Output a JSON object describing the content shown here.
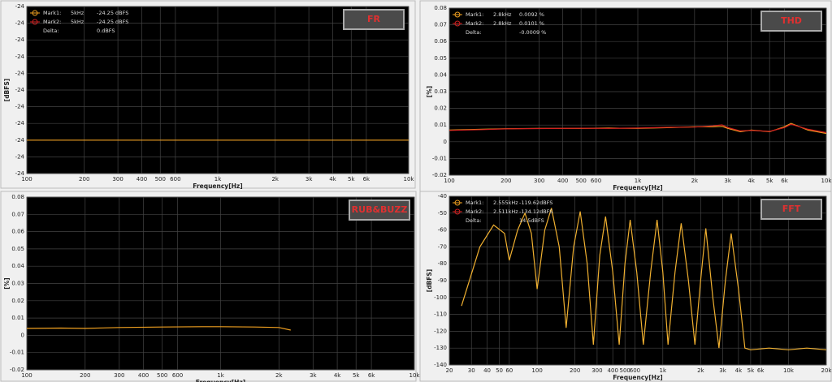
{
  "chart_data": [
    {
      "type": "line",
      "title": "FR",
      "ylabel": "[dBFS]",
      "xlabel": "Frequency[Hz]",
      "xscale": "log",
      "grid": true,
      "xlim": [
        100,
        10000
      ],
      "ylim": [
        -24.27,
        -24.17
      ],
      "xticks": [
        100,
        200,
        300,
        400,
        500,
        600,
        {
          "value": 1000,
          "label": "1k"
        },
        {
          "value": 2000,
          "label": "2k"
        },
        {
          "value": 3000,
          "label": "3k"
        },
        {
          "value": 4000,
          "label": "4k"
        },
        {
          "value": 5000,
          "label": "5k"
        },
        {
          "value": 6000,
          "label": "6k"
        },
        {
          "value": 10000,
          "label": "10k"
        }
      ],
      "yticks": [
        {
          "value": -24.17,
          "label": "-24"
        },
        {
          "value": -24.18,
          "label": "-24"
        },
        {
          "value": -24.19,
          "label": "-24"
        },
        {
          "value": -24.2,
          "label": "-24"
        },
        {
          "value": -24.21,
          "label": "-24"
        },
        {
          "value": -24.22,
          "label": "-24"
        },
        {
          "value": -24.23,
          "label": "-24"
        },
        {
          "value": -24.24,
          "label": "-24"
        },
        {
          "value": -24.25,
          "label": "-24"
        },
        {
          "value": -24.26,
          "label": "-24"
        },
        {
          "value": -24.27,
          "label": "-24"
        }
      ],
      "legend": [
        {
          "name": "Mark1:",
          "freq": "5kHz",
          "level": "-24.25 dBFS"
        },
        {
          "name": "Mark2:",
          "freq": "5kHz",
          "level": "-24.25 dBFS"
        },
        {
          "name": "Delta:",
          "level": "0.dBFS"
        }
      ],
      "series": [
        {
          "color": "#f0a020",
          "x": [
            100,
            1000,
            5000,
            10000
          ],
          "values": [
            -24.25,
            -24.25,
            -24.25,
            -24.25
          ]
        }
      ]
    },
    {
      "type": "line",
      "title": "THD",
      "ylabel": "[%]",
      "xlabel": "Frequency[Hz]",
      "xscale": "log",
      "grid": true,
      "xlim": [
        100,
        10000
      ],
      "ylim": [
        -0.02,
        0.08
      ],
      "xticks": [
        100,
        200,
        300,
        400,
        500,
        600,
        {
          "value": 1000,
          "label": "1k"
        },
        {
          "value": 2000,
          "label": "2k"
        },
        {
          "value": 3000,
          "label": "3k"
        },
        {
          "value": 4000,
          "label": "4k"
        },
        {
          "value": 5000,
          "label": "5k"
        },
        {
          "value": 6000,
          "label": "6k"
        },
        {
          "value": 10000,
          "label": "10k"
        }
      ],
      "yticks": [
        0.08,
        0.07,
        0.06,
        0.05,
        0.04,
        0.03,
        0.02,
        0.01,
        0,
        -0.01,
        -0.02
      ],
      "legend": [
        {
          "name": "Mark1:",
          "freq": "2.8kHz",
          "level": "0.0092 %"
        },
        {
          "name": "Mark2:",
          "freq": "2.8kHz",
          "level": "0.0101 %"
        },
        {
          "name": "Delta:",
          "level": "-0.0009 %"
        }
      ],
      "series": [
        {
          "color": "#f0a020",
          "x": [
            100,
            150,
            200,
            300,
            500,
            700,
            1000,
            1500,
            2000,
            2500,
            2800,
            3000,
            3500,
            4000,
            5000,
            6000,
            6500,
            8000,
            10000
          ],
          "values": [
            0.007,
            0.0075,
            0.0078,
            0.008,
            0.008,
            0.0082,
            0.008,
            0.0085,
            0.009,
            0.009,
            0.0092,
            0.008,
            0.006,
            0.007,
            0.006,
            0.009,
            0.011,
            0.007,
            0.005
          ]
        },
        {
          "color": "#d02020",
          "x": [
            100,
            150,
            200,
            300,
            500,
            700,
            1000,
            1500,
            2000,
            2500,
            2800,
            3000,
            3500,
            4000,
            5000,
            6000,
            6500,
            8000,
            10000
          ],
          "values": [
            0.0068,
            0.0073,
            0.0077,
            0.0079,
            0.0081,
            0.008,
            0.0082,
            0.0087,
            0.0088,
            0.0095,
            0.0101,
            0.0085,
            0.0065,
            0.0068,
            0.0062,
            0.0085,
            0.0105,
            0.0075,
            0.0055
          ]
        }
      ]
    },
    {
      "type": "line",
      "title": "RUB&BUZZ",
      "ylabel": "[%]",
      "xlabel": "Frequency[Hz]",
      "xscale": "log",
      "grid": true,
      "xlim": [
        100,
        10000
      ],
      "ylim": [
        -0.02,
        0.08
      ],
      "xticks": [
        100,
        200,
        300,
        400,
        500,
        600,
        {
          "value": 1000,
          "label": "1k"
        },
        {
          "value": 2000,
          "label": "2k"
        },
        {
          "value": 3000,
          "label": "3k"
        },
        {
          "value": 4000,
          "label": "4k"
        },
        {
          "value": 5000,
          "label": "5k"
        },
        {
          "value": 6000,
          "label": "6k"
        },
        {
          "value": 10000,
          "label": "10k"
        }
      ],
      "yticks": [
        0.08,
        0.07,
        0.06,
        0.05,
        0.04,
        0.03,
        0.02,
        0.01,
        0,
        -0.01,
        -0.02
      ],
      "series": [
        {
          "color": "#f0a020",
          "x": [
            100,
            150,
            200,
            300,
            500,
            800,
            1000,
            1500,
            2000,
            2300
          ],
          "values": [
            0.004,
            0.0042,
            0.004,
            0.0045,
            0.0048,
            0.005,
            0.005,
            0.0048,
            0.0045,
            0.003
          ]
        }
      ]
    },
    {
      "type": "line",
      "title": "FFT",
      "ylabel": "[dBFS]",
      "xlabel": "Frequency[Hz]",
      "xscale": "log",
      "grid": true,
      "xlim": [
        20,
        20000
      ],
      "ylim": [
        -140,
        -40
      ],
      "xticks": [
        20,
        30,
        40,
        50,
        60,
        100,
        200,
        300,
        400,
        500,
        600,
        {
          "value": 1000,
          "label": "1k"
        },
        {
          "value": 2000,
          "label": "2k"
        },
        {
          "value": 3000,
          "label": "3k"
        },
        {
          "value": 4000,
          "label": "4k"
        },
        {
          "value": 5000,
          "label": "5k"
        },
        {
          "value": 6000,
          "label": "6k"
        },
        {
          "value": 10000,
          "label": "10k"
        },
        {
          "value": 20000,
          "label": "20k"
        }
      ],
      "yticks": [
        -40,
        -50,
        -60,
        -70,
        -80,
        -90,
        -100,
        -110,
        -120,
        -130,
        -140
      ],
      "legend": [
        {
          "name": "Mark1:",
          "freq": "2.555kHz",
          "level": "-119.62dBFS"
        },
        {
          "name": "Mark2:",
          "freq": "2.511kHz",
          "level": "-134.12dBFS"
        },
        {
          "name": "Delta:",
          "level": "14.5dBFS"
        }
      ],
      "series": [
        {
          "color": "#f0b030",
          "x": [
            25,
            35,
            45,
            55,
            60,
            70,
            80,
            90,
            100,
            115,
            130,
            150,
            170,
            195,
            220,
            250,
            280,
            315,
            350,
            400,
            450,
            500,
            550,
            620,
            700,
            800,
            900,
            1000,
            1100,
            1250,
            1400,
            1600,
            1800,
            2000,
            2200,
            2500,
            2800,
            3150,
            3500,
            4000,
            4500,
            5000,
            7000,
            10000,
            14000,
            20000
          ],
          "values": [
            -105,
            -70,
            -57,
            -62,
            -78,
            -60,
            -50,
            -62,
            -95,
            -60,
            -47,
            -70,
            -118,
            -70,
            -49,
            -80,
            -128,
            -75,
            -52,
            -85,
            -128,
            -80,
            -54,
            -85,
            -128,
            -85,
            -54,
            -85,
            -128,
            -85,
            -56,
            -90,
            -128,
            -90,
            -59,
            -100,
            -130,
            -90,
            -62,
            -95,
            -130,
            -131,
            -130,
            -131,
            -130,
            -131
          ]
        }
      ]
    }
  ]
}
